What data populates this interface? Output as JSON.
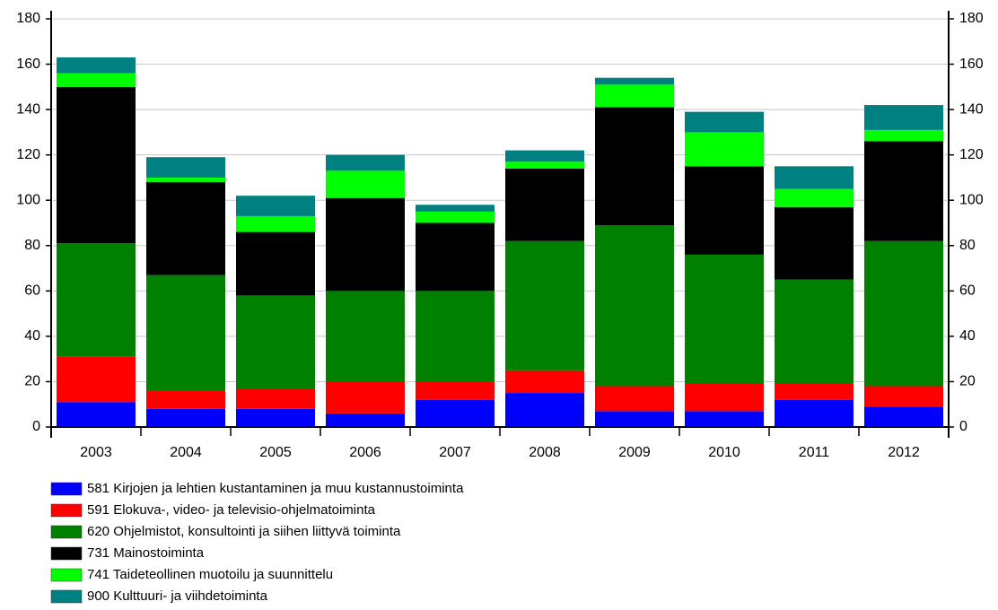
{
  "chart_data": {
    "type": "stacked_bar",
    "categories": [
      "2003",
      "2004",
      "2005",
      "2006",
      "2007",
      "2008",
      "2009",
      "2010",
      "2011",
      "2012"
    ],
    "series": [
      {
        "name": "581 Kirjojen ja lehtien kustantaminen ja muu kustannustoiminta",
        "color": "#0000ff",
        "values": [
          11,
          8,
          8,
          6,
          12,
          15,
          7,
          7,
          12,
          9
        ]
      },
      {
        "name": "591 Elokuva-, video- ja televisio-ohjelmatoiminta",
        "color": "#ff0000",
        "values": [
          20,
          8,
          9,
          14,
          8,
          10,
          11,
          12,
          7,
          9
        ]
      },
      {
        "name": "620 Ohjelmistot, konsultointi ja siihen liittyvä toiminta",
        "color": "#008000",
        "values": [
          50,
          51,
          41,
          40,
          40,
          57,
          71,
          57,
          46,
          64
        ]
      },
      {
        "name": "731 Mainostoiminta",
        "color": "#000000",
        "values": [
          69,
          41,
          28,
          41,
          30,
          32,
          52,
          39,
          32,
          44
        ]
      },
      {
        "name": "741 Taideteollinen muotoilu ja suunnittelu",
        "color": "#00ff00",
        "values": [
          6,
          2,
          7,
          12,
          5,
          3,
          10,
          15,
          8,
          5
        ]
      },
      {
        "name": "900 Kulttuuri- ja viihdetoiminta",
        "color": "#008080",
        "values": [
          7,
          9,
          9,
          7,
          3,
          5,
          3,
          9,
          10,
          11
        ]
      }
    ],
    "ylim": [
      0,
      180
    ],
    "yticks": [
      0,
      20,
      40,
      60,
      80,
      100,
      120,
      140,
      160,
      180
    ],
    "y2lim": [
      0,
      180
    ],
    "y2ticks": [
      0,
      20,
      40,
      60,
      80,
      100,
      120,
      140,
      160,
      180
    ],
    "grid": true
  }
}
